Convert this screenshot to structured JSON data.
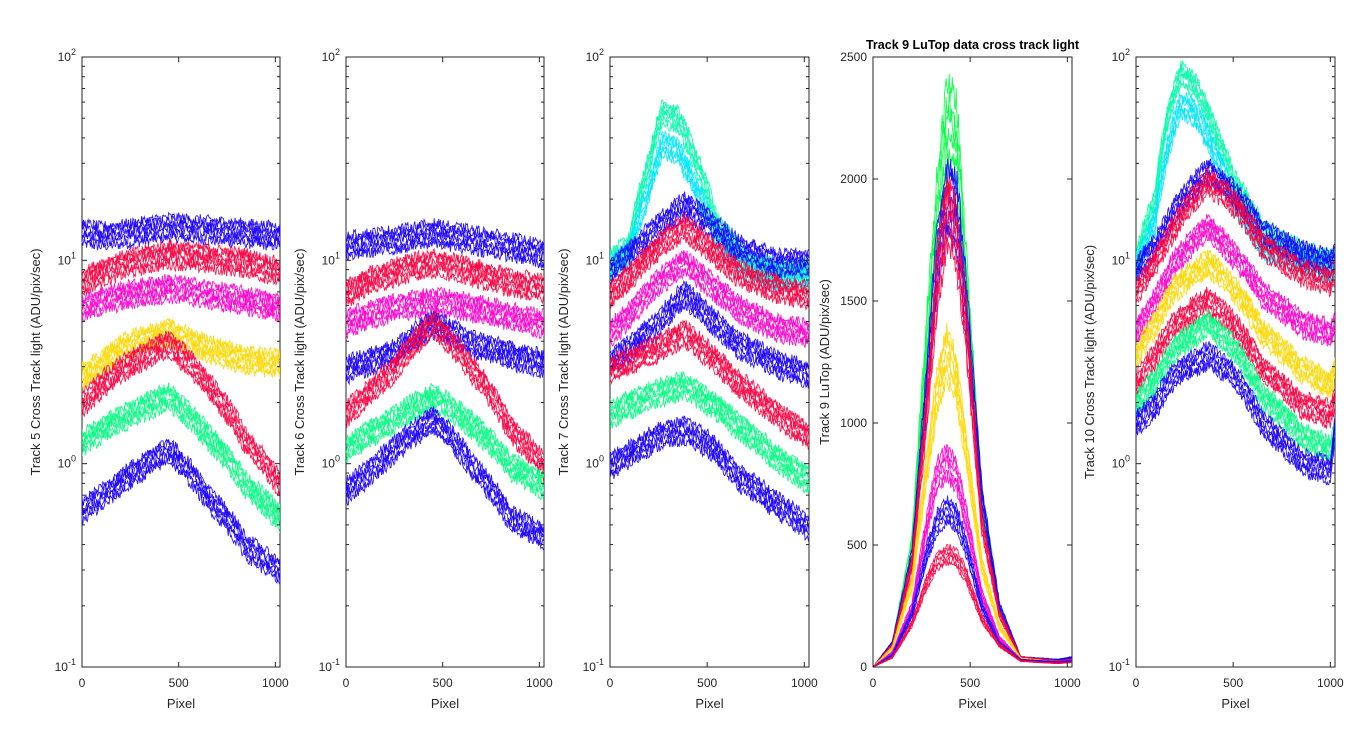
{
  "chart_data": [
    {
      "type": "line",
      "panel": 1,
      "title": "",
      "xlabel": "Pixel",
      "ylabel": "Track 5 Cross Track light (ADU/pix/sec)",
      "yscale": "log",
      "xlim": [
        0,
        1024
      ],
      "ylim": [
        0.1,
        100
      ],
      "xticks": [
        0,
        500,
        1000
      ],
      "yticks": [
        {
          "base": "10",
          "exp": "-1"
        },
        {
          "base": "10",
          "exp": "0"
        },
        {
          "base": "10",
          "exp": "1"
        },
        {
          "base": "10",
          "exp": "2"
        }
      ],
      "grid": false,
      "legend": "none",
      "series_note_count": 6,
      "series": [
        {
          "color": "#1a00ff",
          "x": [
            0,
            100,
            250,
            450,
            650,
            850,
            1024
          ],
          "y": [
            14,
            13.5,
            14,
            15,
            14.5,
            14,
            13.5
          ]
        },
        {
          "color": "#ff0040",
          "x": [
            0,
            100,
            250,
            450,
            650,
            850,
            1024
          ],
          "y": [
            8,
            9,
            10,
            11,
            10.5,
            10,
            9
          ]
        },
        {
          "color": "#ff00cc",
          "x": [
            0,
            100,
            250,
            450,
            650,
            850,
            1024
          ],
          "y": [
            6,
            6.5,
            7,
            7.5,
            7,
            6.5,
            6
          ]
        },
        {
          "color": "#ffd700",
          "x": [
            0,
            100,
            250,
            450,
            650,
            850,
            1024
          ],
          "y": [
            2.8,
            3.2,
            4,
            4.5,
            3.8,
            3.3,
            3.2
          ]
        },
        {
          "color": "#ff0040",
          "x": [
            0,
            100,
            250,
            450,
            650,
            850,
            1024
          ],
          "y": [
            2.0,
            2.5,
            3.2,
            4.0,
            2.5,
            1.3,
            0.8
          ]
        },
        {
          "color": "#00ff80",
          "x": [
            0,
            100,
            250,
            450,
            650,
            850,
            1024
          ],
          "y": [
            1.3,
            1.5,
            1.8,
            2.2,
            1.4,
            0.8,
            0.55
          ]
        },
        {
          "color": "#1a00ff",
          "x": [
            0,
            100,
            250,
            450,
            650,
            850,
            1024
          ],
          "y": [
            0.6,
            0.7,
            0.9,
            1.2,
            0.7,
            0.4,
            0.3
          ]
        }
      ]
    },
    {
      "type": "line",
      "panel": 2,
      "title": "",
      "xlabel": "Pixel",
      "ylabel": "Track 6 Cross Track light (ADU/pix/sec)",
      "yscale": "log",
      "xlim": [
        0,
        1024
      ],
      "ylim": [
        0.1,
        100
      ],
      "xticks": [
        0,
        500,
        1000
      ],
      "yticks": [
        {
          "base": "10",
          "exp": "-1"
        },
        {
          "base": "10",
          "exp": "0"
        },
        {
          "base": "10",
          "exp": "1"
        },
        {
          "base": "10",
          "exp": "2"
        }
      ],
      "grid": false,
      "legend": "none",
      "series": [
        {
          "color": "#1a00ff",
          "x": [
            0,
            100,
            250,
            450,
            650,
            850,
            1024
          ],
          "y": [
            12,
            12.5,
            13,
            14,
            13,
            12,
            11
          ]
        },
        {
          "color": "#ff0040",
          "x": [
            0,
            100,
            250,
            450,
            650,
            850,
            1024
          ],
          "y": [
            7,
            8,
            9,
            10,
            9,
            8,
            7.5
          ]
        },
        {
          "color": "#ff00cc",
          "x": [
            0,
            100,
            250,
            450,
            650,
            850,
            1024
          ],
          "y": [
            5,
            5.5,
            6,
            6.5,
            6,
            5.5,
            5
          ]
        },
        {
          "color": "#1a00ff",
          "x": [
            0,
            100,
            250,
            450,
            650,
            850,
            1024
          ],
          "y": [
            3,
            3.2,
            3.6,
            5,
            4,
            3.5,
            3.2
          ]
        },
        {
          "color": "#ff0040",
          "x": [
            0,
            100,
            250,
            450,
            650,
            850,
            1024
          ],
          "y": [
            1.8,
            2.2,
            3,
            5,
            3,
            1.5,
            1.0
          ]
        },
        {
          "color": "#00ff80",
          "x": [
            0,
            100,
            250,
            450,
            650,
            850,
            1024
          ],
          "y": [
            1.2,
            1.4,
            1.7,
            2.2,
            1.6,
            1.0,
            0.8
          ]
        },
        {
          "color": "#1a00ff",
          "x": [
            0,
            100,
            250,
            450,
            650,
            850,
            1024
          ],
          "y": [
            0.75,
            0.9,
            1.2,
            1.7,
            1.0,
            0.55,
            0.45
          ]
        }
      ]
    },
    {
      "type": "line",
      "panel": 3,
      "title": "",
      "xlabel": "Pixel",
      "ylabel": "Track 7 Cross Track light (ADU/pix/sec)",
      "yscale": "log",
      "xlim": [
        0,
        1024
      ],
      "ylim": [
        0.1,
        100
      ],
      "xticks": [
        0,
        500,
        1000
      ],
      "yticks": [
        {
          "base": "10",
          "exp": "-1"
        },
        {
          "base": "10",
          "exp": "0"
        },
        {
          "base": "10",
          "exp": "1"
        },
        {
          "base": "10",
          "exp": "2"
        }
      ],
      "grid": false,
      "legend": "none",
      "series": [
        {
          "color": "#00ffaa",
          "x": [
            0,
            100,
            200,
            270,
            350,
            450,
            550,
            700,
            850,
            1024
          ],
          "y": [
            10,
            12,
            30,
            55,
            50,
            30,
            15,
            10,
            9,
            9
          ]
        },
        {
          "color": "#00e5ff",
          "x": [
            0,
            100,
            200,
            270,
            350,
            450,
            550,
            700,
            850,
            1024
          ],
          "y": [
            9.5,
            11,
            22,
            38,
            35,
            22,
            13,
            9.5,
            8.5,
            8.5
          ]
        },
        {
          "color": "#1a00ff",
          "x": [
            0,
            100,
            250,
            380,
            500,
            650,
            850,
            1024
          ],
          "y": [
            9,
            11,
            15,
            19,
            16,
            12,
            10,
            10
          ]
        },
        {
          "color": "#ff0040",
          "x": [
            0,
            100,
            250,
            380,
            500,
            650,
            850,
            1024
          ],
          "y": [
            7,
            8.5,
            12,
            15,
            12,
            9,
            7.5,
            7
          ]
        },
        {
          "color": "#ff00cc",
          "x": [
            0,
            100,
            250,
            380,
            500,
            650,
            850,
            1024
          ],
          "y": [
            4.5,
            5.5,
            8,
            10,
            8,
            6,
            4.8,
            4.5
          ]
        },
        {
          "color": "#1a00ff",
          "x": [
            0,
            100,
            250,
            380,
            500,
            650,
            850,
            1024
          ],
          "y": [
            3.2,
            3.8,
            5,
            7,
            5.5,
            4,
            3.2,
            2.8
          ]
        },
        {
          "color": "#ff0040",
          "x": [
            0,
            100,
            250,
            380,
            500,
            650,
            850,
            1024
          ],
          "y": [
            3.0,
            3.3,
            3.8,
            4.5,
            3.6,
            2.6,
            1.8,
            1.4
          ]
        },
        {
          "color": "#00ff80",
          "x": [
            0,
            100,
            250,
            380,
            500,
            650,
            850,
            1024
          ],
          "y": [
            1.8,
            2.0,
            2.3,
            2.5,
            2.1,
            1.6,
            1.1,
            0.85
          ]
        },
        {
          "color": "#1a00ff",
          "x": [
            0,
            100,
            250,
            380,
            500,
            650,
            850,
            1024
          ],
          "y": [
            1.0,
            1.15,
            1.4,
            1.5,
            1.3,
            0.9,
            0.65,
            0.5
          ]
        }
      ]
    },
    {
      "type": "line",
      "panel": 4,
      "title": "Track 9 LuTop  data cross track light",
      "xlabel": "Pixel",
      "ylabel": "Track 9 LuTop (ADU/pix/sec)",
      "yscale": "linear",
      "xlim": [
        0,
        1024
      ],
      "ylim": [
        0,
        2500
      ],
      "xticks": [
        0,
        500,
        1000
      ],
      "yticks": [
        {
          "base": "0",
          "exp": ""
        },
        {
          "base": "500",
          "exp": ""
        },
        {
          "base": "1000",
          "exp": ""
        },
        {
          "base": "1500",
          "exp": ""
        },
        {
          "base": "2000",
          "exp": ""
        },
        {
          "base": "2500",
          "exp": ""
        }
      ],
      "grid": false,
      "legend": "none",
      "series": [
        {
          "color": "#00ff40",
          "x": [
            0,
            100,
            200,
            280,
            330,
            380,
            430,
            480,
            560,
            650,
            760,
            950,
            1024
          ],
          "y": [
            0,
            100,
            500,
            1400,
            1900,
            2250,
            2200,
            1600,
            700,
            250,
            40,
            30,
            40
          ]
        },
        {
          "color": "#1a00ff",
          "x": [
            0,
            100,
            200,
            280,
            330,
            380,
            430,
            480,
            560,
            650,
            760,
            950,
            1024
          ],
          "y": [
            0,
            100,
            450,
            1200,
            1700,
            1950,
            1900,
            1500,
            700,
            250,
            40,
            30,
            40
          ]
        },
        {
          "color": "#ff0040",
          "x": [
            0,
            100,
            200,
            280,
            330,
            380,
            430,
            480,
            560,
            650,
            760,
            950,
            1024
          ],
          "y": [
            0,
            90,
            420,
            1100,
            1600,
            1900,
            1800,
            1400,
            600,
            220,
            40,
            25,
            30
          ]
        },
        {
          "color": "#ffd700",
          "x": [
            0,
            100,
            200,
            280,
            330,
            380,
            430,
            480,
            560,
            650,
            760,
            950,
            1024
          ],
          "y": [
            0,
            80,
            350,
            850,
            1150,
            1300,
            1200,
            900,
            420,
            170,
            35,
            20,
            25
          ]
        },
        {
          "color": "#ff00cc",
          "x": [
            0,
            100,
            200,
            280,
            330,
            380,
            430,
            480,
            560,
            650,
            760,
            950,
            1024
          ],
          "y": [
            0,
            60,
            250,
            600,
            800,
            850,
            800,
            620,
            300,
            120,
            30,
            20,
            25
          ]
        },
        {
          "color": "#1a00ff",
          "x": [
            0,
            100,
            200,
            280,
            330,
            380,
            430,
            480,
            560,
            650,
            760,
            950,
            1024
          ],
          "y": [
            0,
            50,
            220,
            480,
            600,
            650,
            620,
            500,
            250,
            100,
            30,
            20,
            25
          ]
        },
        {
          "color": "#ff0040",
          "x": [
            0,
            100,
            200,
            280,
            330,
            380,
            430,
            480,
            560,
            650,
            760,
            950,
            1024
          ],
          "y": [
            0,
            40,
            180,
            360,
            440,
            470,
            450,
            380,
            200,
            90,
            25,
            15,
            20
          ]
        }
      ]
    },
    {
      "type": "line",
      "panel": 5,
      "title": "",
      "xlabel": "Pixel",
      "ylabel": "Track 10 Cross Track light (ADU/pix/sec)",
      "yscale": "log",
      "xlim": [
        0,
        1024
      ],
      "ylim": [
        0.1,
        100
      ],
      "xticks": [
        0,
        500,
        1000
      ],
      "yticks": [
        {
          "base": "10",
          "exp": "-1"
        },
        {
          "base": "10",
          "exp": "0"
        },
        {
          "base": "10",
          "exp": "1"
        },
        {
          "base": "10",
          "exp": "2"
        }
      ],
      "grid": false,
      "legend": "none",
      "series": [
        {
          "color": "#00ffaa",
          "x": [
            0,
            100,
            170,
            230,
            300,
            400,
            500,
            650,
            850,
            1000,
            1024
          ],
          "y": [
            10,
            20,
            55,
            85,
            75,
            45,
            25,
            14,
            11,
            10,
            10
          ]
        },
        {
          "color": "#00e5ff",
          "x": [
            0,
            100,
            170,
            230,
            300,
            400,
            500,
            650,
            850,
            1000,
            1024
          ],
          "y": [
            9,
            16,
            38,
            60,
            55,
            35,
            20,
            12,
            10,
            9,
            9
          ]
        },
        {
          "color": "#1a00ff",
          "x": [
            0,
            100,
            200,
            370,
            500,
            650,
            850,
            1000,
            1024
          ],
          "y": [
            9,
            12,
            18,
            28,
            22,
            14,
            11,
            10,
            11
          ]
        },
        {
          "color": "#ff0040",
          "x": [
            0,
            100,
            200,
            370,
            500,
            650,
            850,
            1000,
            1024
          ],
          "y": [
            7,
            10,
            15,
            25,
            20,
            12,
            9,
            8,
            9
          ]
        },
        {
          "color": "#ff00cc",
          "x": [
            0,
            100,
            200,
            370,
            500,
            650,
            850,
            1000,
            1024
          ],
          "y": [
            4.5,
            6.5,
            10,
            15,
            11,
            7,
            5,
            4.5,
            5
          ]
        },
        {
          "color": "#ffd700",
          "x": [
            0,
            100,
            200,
            370,
            500,
            650,
            850,
            1000,
            1024
          ],
          "y": [
            3.5,
            5,
            7.5,
            10,
            7.5,
            4.5,
            3,
            2.5,
            3
          ]
        },
        {
          "color": "#ff0040",
          "x": [
            0,
            100,
            200,
            370,
            500,
            650,
            850,
            1000,
            1024
          ],
          "y": [
            2.5,
            3.5,
            5,
            6.5,
            5,
            3,
            2,
            1.8,
            2.2
          ]
        },
        {
          "color": "#00ff80",
          "x": [
            0,
            100,
            200,
            370,
            500,
            650,
            850,
            1000,
            1024
          ],
          "y": [
            2.0,
            2.6,
            3.8,
            5,
            3.8,
            2.2,
            1.4,
            1.2,
            1.5
          ]
        },
        {
          "color": "#1a00ff",
          "x": [
            0,
            100,
            200,
            370,
            500,
            650,
            850,
            1000,
            1024
          ],
          "y": [
            1.6,
            2.0,
            2.8,
            3.5,
            2.8,
            1.6,
            1.05,
            0.95,
            1.5
          ]
        }
      ]
    }
  ]
}
